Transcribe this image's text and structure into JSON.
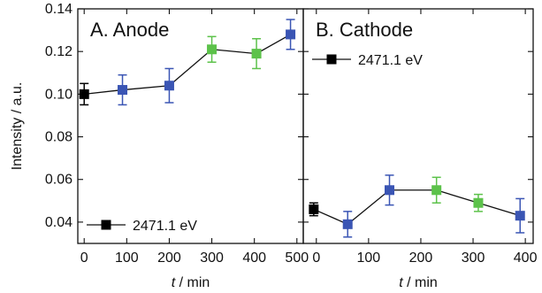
{
  "chart_data": [
    {
      "type": "scatter",
      "title": "A. Anode",
      "xlabel_italic": "t",
      "xlabel_rest": " / min",
      "ylabel": "Intensity / a.u.",
      "xlim": [
        -15,
        515
      ],
      "ylim": [
        0.03,
        0.14
      ],
      "xticks": [
        0,
        100,
        200,
        300,
        400,
        500
      ],
      "xtick_labels": [
        "0",
        "100",
        "200",
        "300",
        "400",
        "500"
      ],
      "yticks": [
        0.04,
        0.06,
        0.08,
        0.1,
        0.12,
        0.14
      ],
      "ytick_labels": [
        "0.04",
        "0.06",
        "0.08",
        "0.10",
        "0.12",
        "0.14"
      ],
      "legend": {
        "label": "2471.1 eV",
        "position": "bottom-left",
        "marker_color": "#000000"
      },
      "series": [
        {
          "name": "2471.1 eV",
          "points": [
            {
              "x": 0,
              "y": 0.1,
              "err": 0.005,
              "color": "#000000"
            },
            {
              "x": 90,
              "y": 0.102,
              "err": 0.007,
              "color": "#3a55b4"
            },
            {
              "x": 200,
              "y": 0.104,
              "err": 0.008,
              "color": "#3a55b4"
            },
            {
              "x": 300,
              "y": 0.121,
              "err": 0.006,
              "color": "#5cc24a"
            },
            {
              "x": 405,
              "y": 0.119,
              "err": 0.007,
              "color": "#5cc24a"
            },
            {
              "x": 485,
              "y": 0.128,
              "err": 0.007,
              "color": "#3a55b4"
            }
          ]
        }
      ]
    },
    {
      "type": "scatter",
      "title": "B. Cathode",
      "xlabel_italic": "t",
      "xlabel_rest": " / min",
      "xlim": [
        -25,
        415
      ],
      "ylim": [
        0.03,
        0.14
      ],
      "xticks": [
        0,
        100,
        200,
        300,
        400
      ],
      "xtick_labels": [
        "0",
        "100",
        "200",
        "300",
        "400"
      ],
      "legend": {
        "label": "2471.1 eV",
        "position": "top-left",
        "marker_color": "#000000"
      },
      "series": [
        {
          "name": "2471.1 eV",
          "points": [
            {
              "x": -5,
              "y": 0.046,
              "err": 0.003,
              "color": "#000000"
            },
            {
              "x": 60,
              "y": 0.039,
              "err": 0.006,
              "color": "#3a55b4"
            },
            {
              "x": 140,
              "y": 0.055,
              "err": 0.007,
              "color": "#3a55b4"
            },
            {
              "x": 230,
              "y": 0.055,
              "err": 0.006,
              "color": "#5cc24a"
            },
            {
              "x": 310,
              "y": 0.049,
              "err": 0.004,
              "color": "#5cc24a"
            },
            {
              "x": 390,
              "y": 0.043,
              "err": 0.008,
              "color": "#3a55b4"
            }
          ]
        }
      ]
    }
  ]
}
